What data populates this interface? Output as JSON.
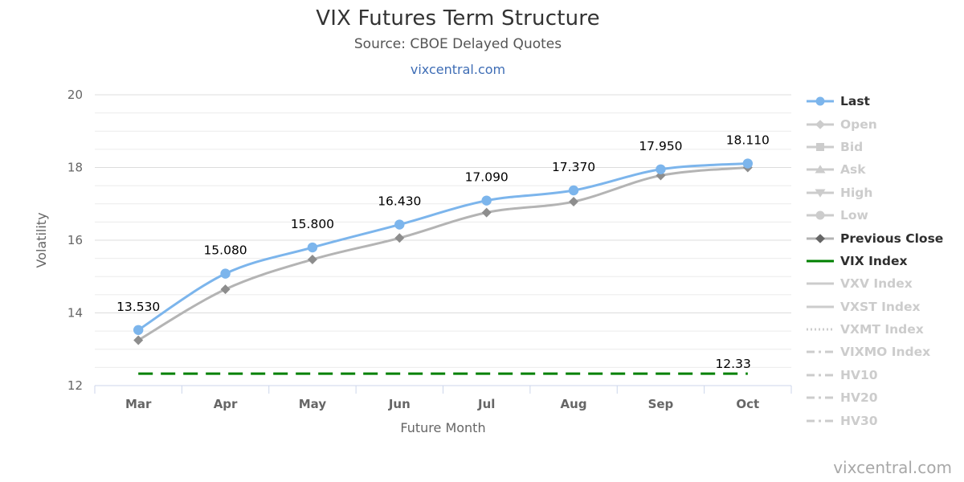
{
  "header": {
    "title": "VIX Futures Term Structure",
    "subtitle": "Source: CBOE Delayed Quotes",
    "link": "vixcentral.com"
  },
  "watermark": "vixcentral.com",
  "colors": {
    "last_blue": "#7cb5ec",
    "prev_close_line": "#b4b4b4",
    "prev_close_marker": "#8d8d8d",
    "vix_green": "#008000",
    "disabled_gray": "#cccccc",
    "axis_text": "#666666",
    "axis_line": "#ccd6eb",
    "link_blue": "#3e6db5"
  },
  "chart_data": {
    "type": "line",
    "title": "VIX Futures Term Structure",
    "subtitle": "Source: CBOE Delayed Quotes",
    "categories": [
      "Mar",
      "Apr",
      "May",
      "Jun",
      "Jul",
      "Aug",
      "Sep",
      "Oct"
    ],
    "xlabel": "Future Month",
    "ylabel": "Volatility",
    "ylim": [
      12,
      20
    ],
    "y_ticks": [
      12,
      14,
      16,
      18,
      20
    ],
    "minor_grid_step": 0.5,
    "grid": true,
    "legend_position": "right",
    "series": [
      {
        "name": "Last",
        "values": [
          13.53,
          15.08,
          15.8,
          16.43,
          17.09,
          17.37,
          17.95,
          18.11
        ],
        "data_labels": [
          "13.530",
          "15.080",
          "15.800",
          "16.430",
          "17.090",
          "17.370",
          "17.950",
          "18.110"
        ],
        "color": "#7cb5ec",
        "marker": "circle",
        "dash": "solid",
        "enabled": true
      },
      {
        "name": "Previous Close",
        "values": [
          13.25,
          14.65,
          15.47,
          16.06,
          16.76,
          17.06,
          17.78,
          18.0
        ],
        "color": "#b4b4b4",
        "marker_color": "#8d8d8d",
        "marker": "diamond",
        "dash": "solid",
        "enabled": true
      },
      {
        "name": "VIX Index",
        "constant_value": 12.33,
        "label": "12.33",
        "color": "#008000",
        "dash": "dashed",
        "enabled": true
      }
    ],
    "legend": [
      {
        "label": "Last",
        "marker": "circle",
        "enabled": true,
        "color": "#7cb5ec"
      },
      {
        "label": "Open",
        "marker": "diamond",
        "enabled": false,
        "color": "#cccccc"
      },
      {
        "label": "Bid",
        "marker": "square",
        "enabled": false,
        "color": "#cccccc"
      },
      {
        "label": "Ask",
        "marker": "triangle-up",
        "enabled": false,
        "color": "#cccccc"
      },
      {
        "label": "High",
        "marker": "triangle-down",
        "enabled": false,
        "color": "#cccccc"
      },
      {
        "label": "Low",
        "marker": "circle",
        "enabled": false,
        "color": "#cccccc"
      },
      {
        "label": "Previous Close",
        "marker": "diamond",
        "enabled": true,
        "color": "#b4b4b4",
        "marker_color": "#666666"
      },
      {
        "label": "VIX Index",
        "marker": "line",
        "enabled": true,
        "color": "#008000"
      },
      {
        "label": "VXV Index",
        "marker": "line",
        "enabled": false,
        "color": "#cccccc"
      },
      {
        "label": "VXST Index",
        "marker": "line",
        "enabled": false,
        "color": "#cccccc"
      },
      {
        "label": "VXMT Index",
        "marker": "line-dotted",
        "enabled": false,
        "color": "#cccccc"
      },
      {
        "label": "VIXMO Index",
        "marker": "line-dashdot",
        "enabled": false,
        "color": "#cccccc"
      },
      {
        "label": "HV10",
        "marker": "line-dashdot",
        "enabled": false,
        "color": "#cccccc"
      },
      {
        "label": "HV20",
        "marker": "line-dashdot",
        "enabled": false,
        "color": "#cccccc"
      },
      {
        "label": "HV30",
        "marker": "line-dashdot",
        "enabled": false,
        "color": "#cccccc"
      }
    ]
  }
}
